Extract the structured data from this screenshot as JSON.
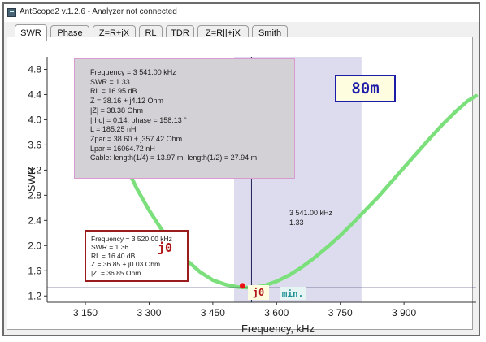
{
  "window": {
    "title": "AntScope2 v.1.2.6 - Analyzer not connected"
  },
  "tabs": [
    {
      "label": "SWR",
      "active": true
    },
    {
      "label": "Phase",
      "active": false
    },
    {
      "label": "Z=R+jX",
      "active": false
    },
    {
      "label": "RL",
      "active": false
    },
    {
      "label": "TDR",
      "active": false
    },
    {
      "label": "Z=R||+jX",
      "active": false
    },
    {
      "label": "Smith",
      "active": false
    }
  ],
  "cursor_info": {
    "lines": [
      "Frequency = 3 541.00 kHz",
      "SWR = 1.33",
      "RL = 16.95 dB",
      "Z = 38.16 + j4.12 Ohm",
      "|Z| = 38.38 Ohm",
      "|rho| = 0.14, phase = 158.13 °",
      "L = 185.25 nH",
      "Zpar = 38.60 + j357.42 Ohm",
      "Lpar = 16064.72 nH",
      "Cable: length(1/4) = 13.97 m, length(1/2) = 27.94 m"
    ]
  },
  "band_label": "80m",
  "cursor_readout": {
    "freq": "3 541.00 kHz",
    "swr": "1.33"
  },
  "marker_info": {
    "lines": [
      "Frequency = 3 520.00 kHz",
      "SWR = 1.36",
      "RL = 16.40 dB",
      "Z = 36.85 + j0.03 Ohm",
      "|Z| = 36.85 Ohm"
    ],
    "tag": "j0"
  },
  "marker_chip": "j0",
  "min_chip": "min.",
  "chart_data": {
    "type": "line",
    "xlabel": "Frequency, kHz",
    "ylabel": "SWR",
    "xlim": [
      3060,
      4070
    ],
    "ylim": [
      1.1,
      5.0
    ],
    "xticks": [
      3150,
      3300,
      3450,
      3600,
      3750,
      3900
    ],
    "xtick_labels": [
      "3 150",
      "3 300",
      "3 450",
      "3 600",
      "3 750",
      "3 900"
    ],
    "yticks": [
      1.2,
      1.6,
      2.0,
      2.4,
      2.8,
      3.2,
      3.6,
      4.0,
      4.4,
      4.8
    ],
    "ytick_labels": [
      "1.2",
      "1.6",
      "2.0",
      "2.4",
      "2.8",
      "3.2",
      "3.6",
      "4.0",
      "4.4",
      "4.8"
    ],
    "band": {
      "start": 3500,
      "end": 3800
    },
    "cursor": {
      "freq": 3541,
      "swr": 1.33
    },
    "marker": {
      "freq": 3520,
      "swr": 1.36
    },
    "series": [
      {
        "x": [
          3210,
          3240,
          3270,
          3300,
          3330,
          3360,
          3390,
          3420,
          3450,
          3480,
          3510,
          3541,
          3570,
          3600,
          3630,
          3660,
          3690,
          3720,
          3750,
          3780,
          3810,
          3840,
          3870,
          3900,
          3930,
          3960,
          3990,
          4020,
          4050,
          4070
        ],
        "y": [
          3.85,
          3.35,
          2.92,
          2.56,
          2.25,
          1.98,
          1.76,
          1.58,
          1.45,
          1.38,
          1.34,
          1.33,
          1.36,
          1.43,
          1.53,
          1.66,
          1.81,
          1.98,
          2.16,
          2.36,
          2.57,
          2.78,
          3.01,
          3.24,
          3.47,
          3.7,
          3.92,
          4.12,
          4.3,
          4.38
        ],
        "color": "#7be07b"
      }
    ]
  },
  "colors": {
    "band": "#dcdcee",
    "curve": "#7be07b",
    "cursor": "#222255",
    "marker": "#ee1111",
    "band_label": "#1c1ca8",
    "marker_tag": "#b01515",
    "min": "#1d8f95"
  }
}
